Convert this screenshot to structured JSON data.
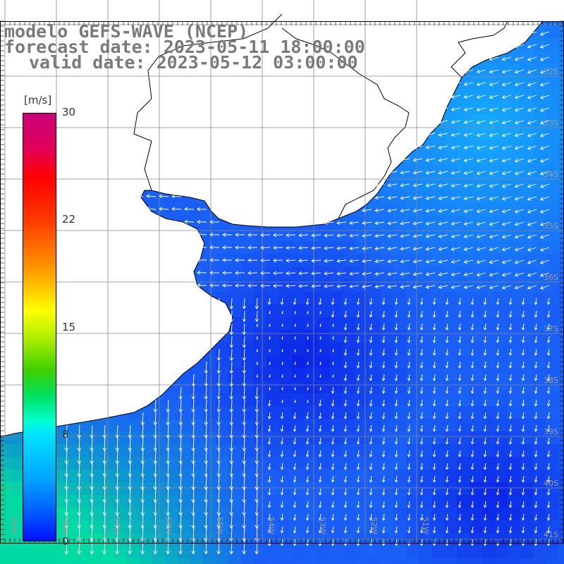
{
  "title": {
    "line1": "modelo GEFS-WAVE (NCEP)",
    "line2": "forecast date: 2023-05-11 18:00:00",
    "line3": "valid date: 2023-05-12 03:00:00"
  },
  "colorbar": {
    "unit": "[m/s]",
    "ticks": [
      "30",
      "22",
      "15",
      "8",
      "0"
    ],
    "tick_values": [
      30,
      22,
      15,
      8,
      0
    ],
    "colors": [
      "#c8007a",
      "#ff0000",
      "#ff8c00",
      "#ffff00",
      "#40d000",
      "#00ffd0",
      "#00a8ff",
      "#0010ff"
    ]
  },
  "map": {
    "variable": "wind speed and direction",
    "latitude_labels": [
      "32S",
      "33S",
      "34S",
      "35S",
      "36S",
      "37S",
      "38S",
      "39S",
      "40S",
      "41S"
    ],
    "longitude_labels": [
      "59W",
      "58W",
      "57W",
      "56W",
      "55W",
      "54W",
      "53W",
      "52W",
      "51W"
    ],
    "ocean_color_main": "#1a5cf5",
    "ocean_color_deep": "#0a1ee6",
    "ocean_color_shelf": "#14b4ff",
    "ocean_color_south": "#00dca0",
    "land_color": "#ffffff",
    "coastline_color": "#000000",
    "grid_color": "#888888",
    "arrow_color": "#ffffff"
  }
}
